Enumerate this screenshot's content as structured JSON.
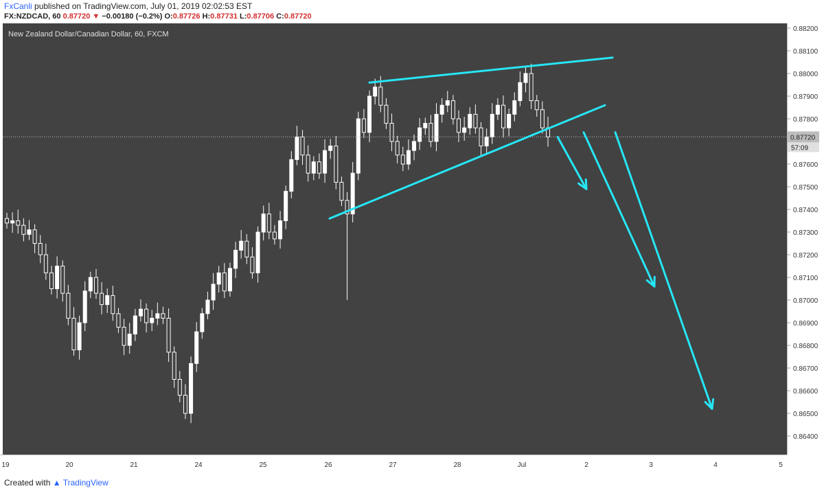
{
  "publish": {
    "user": "FxCanli",
    "text": " published on TradingView.com, July 01, 2019 02:02:53 EST"
  },
  "quote": {
    "symbol": "FX:NZDCAD, 60",
    "last": "0.87720",
    "change": "−0.00180 (−0.2%)",
    "o_label": "O:",
    "o": "0.87726",
    "h_label": "H:",
    "h": "0.87731",
    "l_label": "L:",
    "l": "0.87706",
    "c_label": "C:",
    "c": "0.87720"
  },
  "footer": {
    "created": "Created with",
    "brand": "TradingView"
  },
  "colors": {
    "background": "#424242",
    "candle": "#ffffff",
    "trendline": "#26e6f5",
    "axis_text": "#333333",
    "last_price_tag": "#bdbdbd"
  },
  "chart_data": {
    "type": "candlestick",
    "title": "New Zealand Dollar/Canadian Dollar, 60, FXCM",
    "ylim": [
      0.8635,
      0.8824
    ],
    "y_ticks": [
      "0.88200",
      "0.88100",
      "0.88000",
      "0.87900",
      "0.87800",
      "0.87600",
      "0.87500",
      "0.87400",
      "0.87300",
      "0.87200",
      "0.87100",
      "0.87000",
      "0.86900",
      "0.86800",
      "0.86700",
      "0.86600",
      "0.86500",
      "0.86400"
    ],
    "y_tick_values": [
      0.882,
      0.881,
      0.88,
      0.879,
      0.878,
      0.876,
      0.875,
      0.874,
      0.873,
      0.872,
      0.871,
      0.87,
      0.869,
      0.868,
      0.867,
      0.866,
      0.865,
      0.864
    ],
    "x_ticks": [
      "19",
      "20",
      "21",
      "24",
      "25",
      "26",
      "27",
      "28",
      "Jul",
      "2",
      "3",
      "4",
      "5"
    ],
    "last_price": {
      "value": "0.87720",
      "countdown": "57:09"
    },
    "close_series": [
      0.8734,
      0.8735,
      0.8733,
      0.8729,
      0.8731,
      0.8725,
      0.872,
      0.8712,
      0.8705,
      0.8715,
      0.8703,
      0.8692,
      0.8678,
      0.869,
      0.8704,
      0.871,
      0.8703,
      0.8698,
      0.8702,
      0.8694,
      0.8688,
      0.868,
      0.8685,
      0.8693,
      0.8696,
      0.869,
      0.8692,
      0.8694,
      0.8692,
      0.8677,
      0.8665,
      0.8658,
      0.865,
      0.8672,
      0.8686,
      0.8694,
      0.87,
      0.8707,
      0.8712,
      0.8704,
      0.8714,
      0.8722,
      0.8726,
      0.8719,
      0.8712,
      0.873,
      0.8738,
      0.873,
      0.8727,
      0.8735,
      0.8748,
      0.8762,
      0.8772,
      0.8764,
      0.8756,
      0.8761,
      0.8756,
      0.8766,
      0.8768,
      0.8752,
      0.8744,
      0.8738,
      0.8756,
      0.878,
      0.8774,
      0.879,
      0.8794,
      0.8786,
      0.8778,
      0.877,
      0.8764,
      0.876,
      0.8766,
      0.877,
      0.8776,
      0.8778,
      0.877,
      0.8782,
      0.8786,
      0.8788,
      0.878,
      0.8774,
      0.8776,
      0.8782,
      0.8776,
      0.8768,
      0.8772,
      0.8782,
      0.8786,
      0.8776,
      0.8782,
      0.8788,
      0.8796,
      0.88,
      0.8788,
      0.8784,
      0.8776,
      0.8772
    ],
    "spike_low": 0.87,
    "trendlines": [
      {
        "from": [
          0.8796,
          "26"
        ],
        "to": [
          0.8807,
          "2"
        ]
      },
      {
        "from": [
          0.8736,
          "26"
        ],
        "to": [
          0.8786,
          "2"
        ]
      },
      {
        "arrow": true,
        "from": [
          0.8772,
          "Jul"
        ],
        "to": [
          0.8749,
          "2"
        ]
      },
      {
        "arrow": true,
        "from": [
          0.8774,
          "2"
        ],
        "to": [
          0.8706,
          "3"
        ]
      },
      {
        "arrow": true,
        "from": [
          0.8774,
          "3"
        ],
        "to": [
          0.8652,
          "4"
        ]
      }
    ]
  }
}
